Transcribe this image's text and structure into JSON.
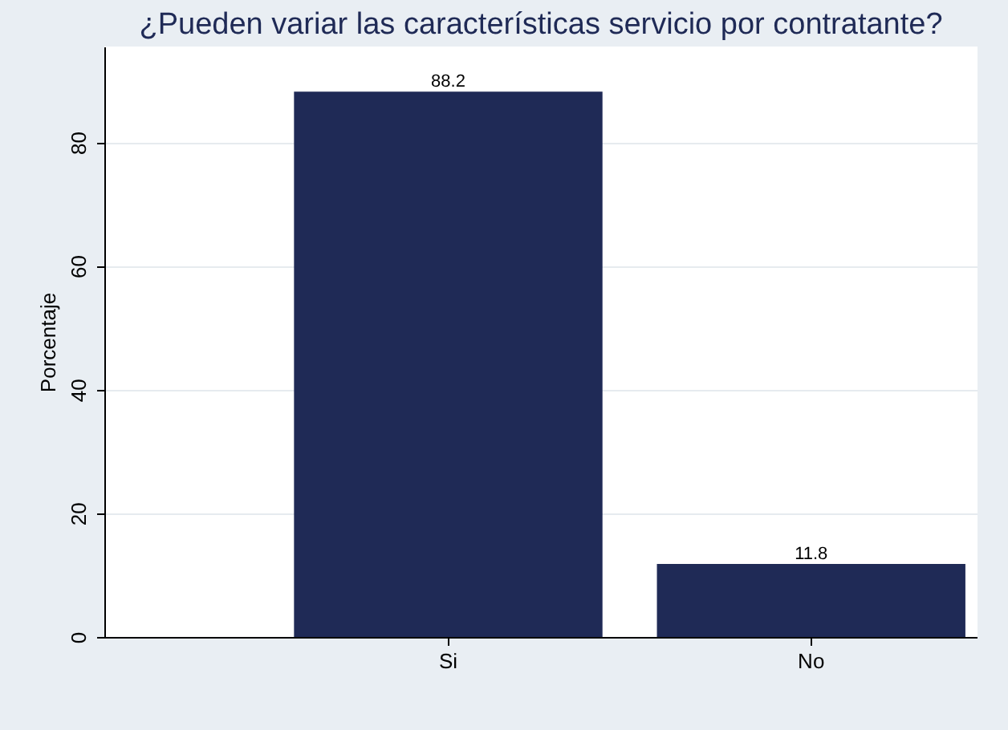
{
  "chart_data": {
    "type": "bar",
    "title": "¿Pueden variar las características servicio por contratante?",
    "ylabel": "Porcentaje",
    "categories": [
      "Si",
      "No"
    ],
    "values": [
      88.2,
      11.8
    ],
    "color": "#1f2a56",
    "data_labels": true,
    "ylim": [
      0,
      95.5
    ],
    "yticks": [
      0,
      20,
      40,
      60,
      80
    ],
    "grid": "y"
  }
}
